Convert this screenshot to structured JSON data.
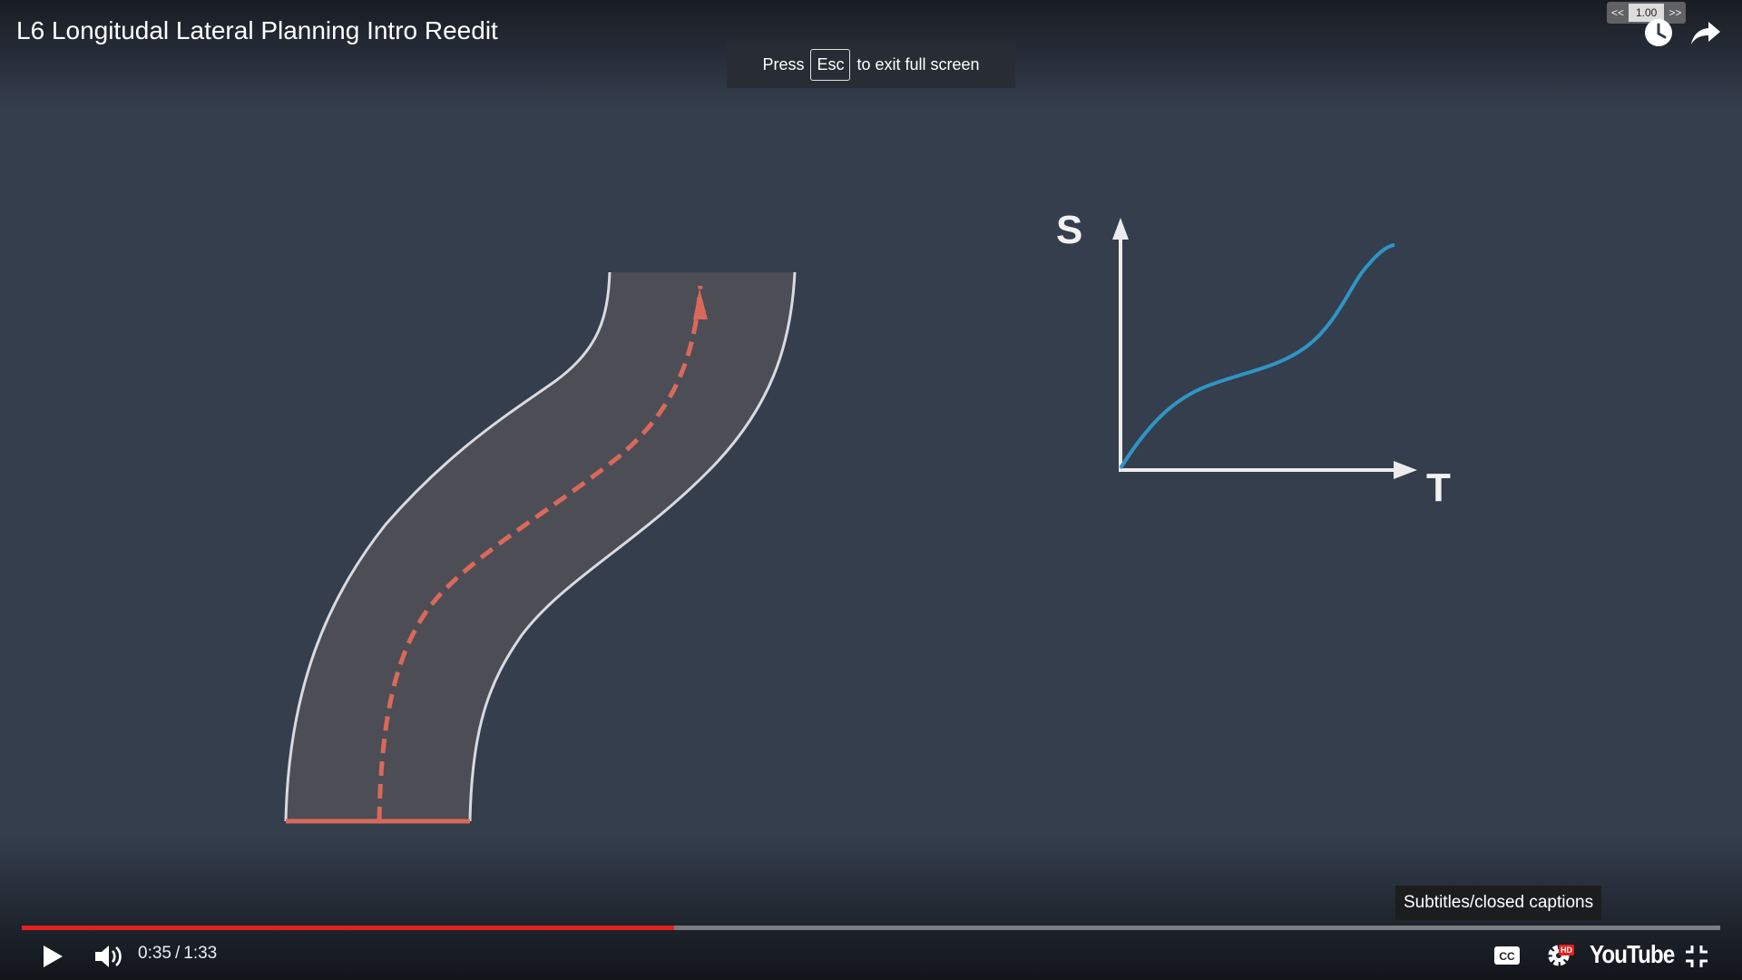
{
  "player": {
    "title": "L6 Longitudal Lateral Planning Intro Reedit",
    "fullscreen_notice": {
      "before": "Press",
      "key": "Esc",
      "after": "to exit full screen"
    },
    "speed_control": {
      "decrease_label": "<<",
      "value": "1.00",
      "increase_label": ">>"
    },
    "top_icons": [
      "watch-later-icon",
      "share-icon"
    ]
  },
  "video_frame": {
    "st_graph": {
      "s_label": "S",
      "t_label": "T"
    },
    "colors": {
      "background": "#343e4d",
      "road": "#4d4d55",
      "road_edge": "#d8dbe0",
      "path": "#d9695a",
      "curve": "#2f95c4"
    }
  },
  "controls": {
    "tooltip": "Subtitles/closed captions",
    "current_time": "0:35",
    "time_separator": "/",
    "duration": "1:33",
    "progress": 0.384,
    "progress_color": "#e52020",
    "hd_badge": "HD",
    "brand": "YouTube",
    "icons": [
      "play-icon",
      "volume-icon",
      "captions-icon",
      "settings-icon",
      "exit-fullscreen-icon"
    ]
  }
}
